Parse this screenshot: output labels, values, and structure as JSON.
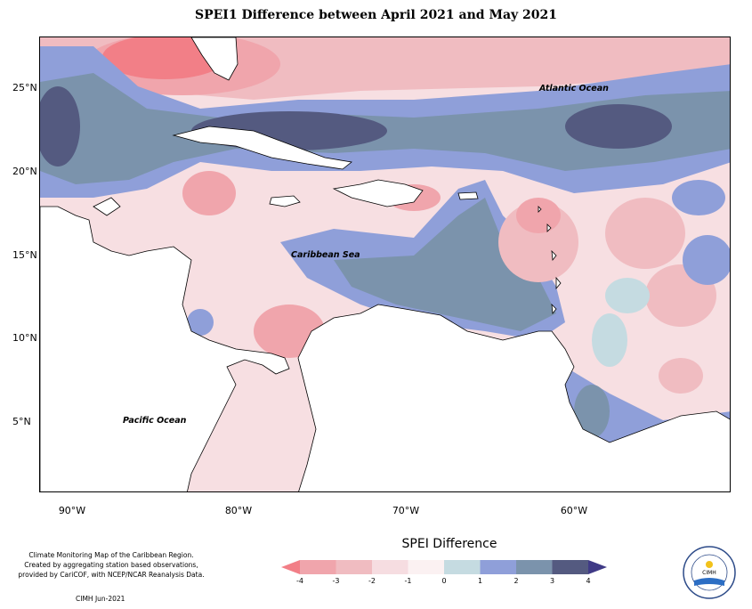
{
  "title": "SPEI1 Difference between April 2021 and May 2021",
  "map": {
    "lat_labels": [
      "25°N",
      "20°N",
      "15°N",
      "10°N",
      "5°N"
    ],
    "lon_labels": [
      "90°W",
      "80°W",
      "70°W",
      "60°W"
    ],
    "ocean_labels": [
      "Atlantic Ocean",
      "Caribbean Sea",
      "Pacific Ocean"
    ],
    "land_color": "#ffffff",
    "outline_color": "#000000"
  },
  "legend": {
    "title": "SPEI Difference",
    "ticks": [
      "-4",
      "-3",
      "-2",
      "-1",
      "0",
      "1",
      "2",
      "3",
      "4"
    ],
    "colors": [
      "#f27f87",
      "#f0a5ac",
      "#f0bcc1",
      "#f6dde1",
      "#fbf1f2",
      "#c5dbe1",
      "#8f9fd9",
      "#7b93ac",
      "#545a80",
      "#3f3a86"
    ]
  },
  "credit": {
    "lines": [
      "Climate Monitoring Map of the Caribbean Region.",
      "Created by aggregating station based observations,",
      "provided by CariCOF, with NCEP/NCAR Reanalysis Data."
    ],
    "date": "CIMH Jun-2021"
  },
  "logo": {
    "text": "CIMH"
  }
}
